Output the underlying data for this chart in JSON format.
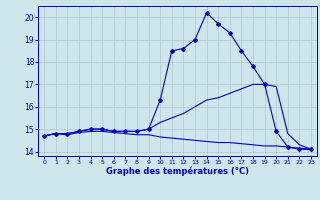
{
  "title": "",
  "xlabel": "Graphe des températures (°C)",
  "bg_color": "#cce8ec",
  "grid_color": "#aac8d0",
  "line_color": "#0000bb",
  "x": [
    0,
    1,
    2,
    3,
    4,
    5,
    6,
    7,
    8,
    9,
    10,
    11,
    12,
    13,
    14,
    15,
    16,
    17,
    18,
    19,
    20,
    21,
    22,
    23
  ],
  "temp_line": [
    14.7,
    14.8,
    14.8,
    14.9,
    15.0,
    15.0,
    14.9,
    14.9,
    14.9,
    15.0,
    16.3,
    18.5,
    18.6,
    19.0,
    20.2,
    19.7,
    19.3,
    18.5,
    17.8,
    17.0,
    14.9,
    14.2,
    14.1,
    14.1
  ],
  "max_line": [
    14.7,
    14.8,
    14.8,
    14.9,
    15.0,
    15.0,
    14.9,
    14.9,
    14.9,
    15.0,
    15.3,
    15.5,
    15.7,
    16.0,
    16.3,
    16.4,
    16.6,
    16.8,
    17.0,
    17.0,
    16.9,
    14.8,
    14.3,
    14.1
  ],
  "dew_line": [
    14.7,
    14.8,
    14.75,
    14.85,
    14.9,
    14.9,
    14.85,
    14.8,
    14.75,
    14.75,
    14.65,
    14.6,
    14.55,
    14.5,
    14.45,
    14.4,
    14.4,
    14.35,
    14.3,
    14.25,
    14.25,
    14.2,
    14.15,
    14.1
  ],
  "ylim": [
    13.8,
    20.5
  ],
  "yticks": [
    14,
    15,
    16,
    17,
    18,
    19,
    20
  ],
  "xlim": [
    -0.5,
    23.5
  ],
  "xticks": [
    0,
    1,
    2,
    3,
    4,
    5,
    6,
    7,
    8,
    9,
    10,
    11,
    12,
    13,
    14,
    15,
    16,
    17,
    18,
    19,
    20,
    21,
    22,
    23
  ]
}
